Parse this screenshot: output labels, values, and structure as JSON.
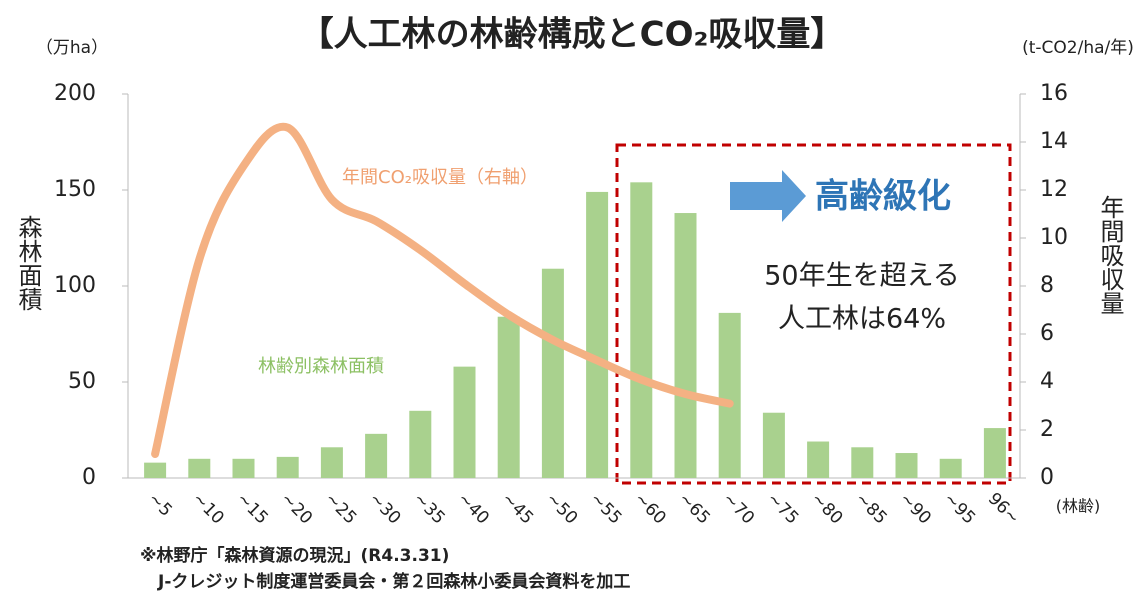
{
  "chart_data": {
    "type": "bar",
    "title": "【人工林の林齢構成とCO₂吸収量】",
    "ylabel": "森林面積",
    "y2label": "年間吸収量",
    "yunit": "（万ha）",
    "y2unit": "(t-CO2/ha/年)",
    "xlabel": "(林齢)",
    "categories": [
      "~5",
      "~10",
      "~15",
      "~20",
      "~25",
      "~30",
      "~35",
      "~40",
      "~45",
      "~50",
      "~55",
      "~60",
      "~65",
      "~70",
      "~75",
      "~80",
      "~85",
      "~90",
      "~95",
      "96~"
    ],
    "series": [
      {
        "name": "林齢別森林面積",
        "type": "bar",
        "color": "#a9d18e",
        "values": [
          8,
          10,
          10,
          11,
          16,
          23,
          35,
          58,
          84,
          109,
          149,
          154,
          138,
          86,
          34,
          19,
          16,
          13,
          10,
          26
        ]
      },
      {
        "name": "年間CO₂吸収量（右軸）",
        "type": "line",
        "axis": "y2",
        "color": "#f4b183",
        "values": [
          1.0,
          9.1,
          13.0,
          14.6,
          11.6,
          10.7,
          9.5,
          8.1,
          6.8,
          5.75,
          4.9,
          4.1,
          3.5,
          3.1,
          null,
          null,
          null,
          null,
          null,
          null
        ]
      }
    ],
    "ylim": [
      0,
      200
    ],
    "yticks": [
      0,
      50,
      100,
      150,
      200
    ],
    "y2lim": [
      0,
      16
    ],
    "y2ticks": [
      0,
      2,
      4,
      6,
      8,
      10,
      12,
      14,
      16
    ],
    "annotations": [
      "高齢級化",
      "50年生を超える",
      "人工林は64%"
    ],
    "sources": [
      "※林野庁「森林資源の現況」(R4.3.31)",
      "J-クレジット制度運営委員会・第２回森林小委員会資料を加工"
    ]
  }
}
